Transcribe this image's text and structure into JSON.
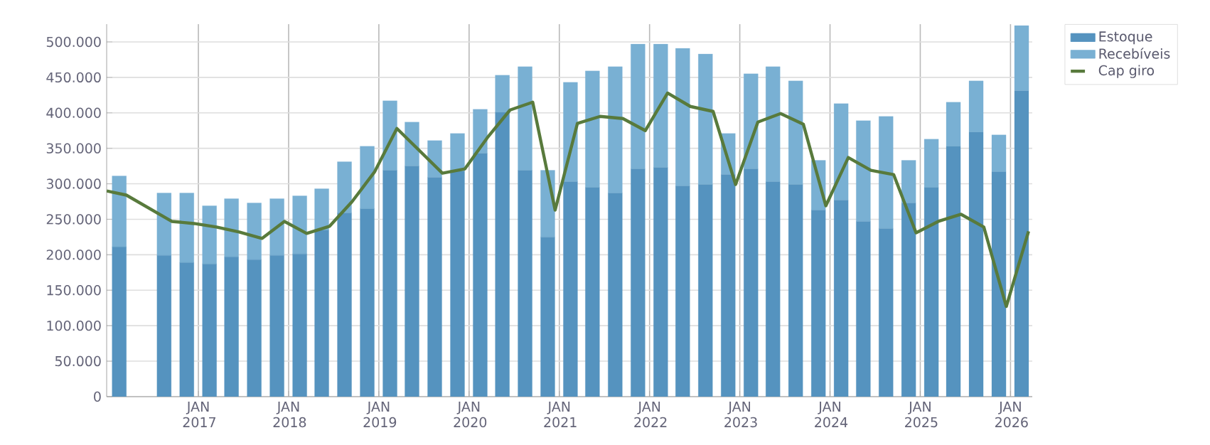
{
  "chart_data": {
    "type": "bar",
    "stacked": true,
    "x": [
      "2016-02-15",
      "2016-05-15",
      "2016-08-15",
      "2016-11-15",
      "2017-02-15",
      "2017-05-15",
      "2017-08-15",
      "2017-11-15",
      "2018-02-15",
      "2018-05-15",
      "2018-08-15",
      "2018-11-15",
      "2019-02-15",
      "2019-05-15",
      "2019-08-15",
      "2019-11-15",
      "2020-02-15",
      "2020-05-15",
      "2020-08-15",
      "2020-11-15",
      "2021-02-15",
      "2021-05-15",
      "2021-08-15",
      "2021-11-15",
      "2022-02-15",
      "2022-05-15",
      "2022-08-15",
      "2022-11-15",
      "2023-02-15",
      "2023-05-15",
      "2023-08-15",
      "2023-11-15",
      "2024-02-15",
      "2024-05-15",
      "2024-08-15",
      "2024-11-15",
      "2025-02-15",
      "2025-05-15",
      "2025-08-15",
      "2025-11-15",
      "2026-02-15"
    ],
    "series": [
      {
        "name": "Estoque",
        "color": "#5593bf",
        "values": [
          211000,
          null,
          199000,
          189000,
          187000,
          197000,
          193000,
          199000,
          201000,
          235000,
          259000,
          265000,
          319000,
          325000,
          309000,
          318000,
          343000,
          401000,
          319000,
          225000,
          303000,
          295000,
          287000,
          321000,
          323000,
          297000,
          299000,
          313000,
          321000,
          303000,
          299000,
          263000,
          277000,
          247000,
          237000,
          273000,
          295000,
          353000,
          373000,
          317000,
          431000
        ]
      },
      {
        "name": "Recebíveis",
        "color": "#79b0d3",
        "values": [
          100000,
          null,
          88000,
          98000,
          82000,
          82000,
          80000,
          80000,
          82000,
          58000,
          72000,
          88000,
          98000,
          62000,
          52000,
          53000,
          62000,
          52000,
          146000,
          94000,
          140000,
          164000,
          178000,
          176000,
          174000,
          194000,
          184000,
          58000,
          134000,
          162000,
          146000,
          70000,
          136000,
          142000,
          158000,
          60000,
          68000,
          62000,
          72000,
          52000,
          92000
        ]
      },
      {
        "name": "Cap giro",
        "type": "line",
        "color": "#587a3c",
        "x": [
          "2015-12-26",
          "2016-03-15",
          "2016-09-15",
          "2016-12-15",
          "2017-03-15",
          "2017-06-15",
          "2017-09-15",
          "2017-12-15",
          "2018-03-15",
          "2018-06-15",
          "2018-09-15",
          "2018-12-15",
          "2019-03-15",
          "2019-09-15",
          "2019-12-15",
          "2020-03-15",
          "2020-06-15",
          "2020-09-15",
          "2020-12-15",
          "2021-03-15",
          "2021-06-15",
          "2021-09-15",
          "2021-12-15",
          "2022-03-15",
          "2022-06-15",
          "2022-09-15",
          "2022-12-15",
          "2023-03-15",
          "2023-06-15",
          "2023-09-15",
          "2023-12-15",
          "2024-03-15",
          "2024-06-15",
          "2024-09-15",
          "2024-12-15",
          "2025-03-15",
          "2025-06-15",
          "2025-09-15",
          "2025-12-15",
          "2026-03-15"
        ],
        "values": [
          290000,
          284000,
          247000,
          244000,
          239000,
          232000,
          223000,
          247000,
          230000,
          240000,
          275000,
          317000,
          378000,
          315000,
          321000,
          365000,
          404000,
          415000,
          263000,
          385000,
          395000,
          392000,
          375000,
          428000,
          409000,
          402000,
          299000,
          387000,
          399000,
          384000,
          269000,
          337000,
          319000,
          313000,
          231000,
          247000,
          257000,
          239000,
          127000,
          233000
        ]
      }
    ],
    "xlim": [
      "2015-12-26",
      "2026-03-30"
    ],
    "ylim": [
      0,
      525000
    ],
    "xticks": [
      {
        "value": "2017-01-01",
        "label": "JAN 2017"
      },
      {
        "value": "2018-01-01",
        "label": "JAN 2018"
      },
      {
        "value": "2019-01-01",
        "label": "JAN 2019"
      },
      {
        "value": "2020-01-01",
        "label": "JAN 2020"
      },
      {
        "value": "2021-01-01",
        "label": "JAN 2021"
      },
      {
        "value": "2022-01-01",
        "label": "JAN 2022"
      },
      {
        "value": "2023-01-01",
        "label": "JAN 2023"
      },
      {
        "value": "2024-01-01",
        "label": "JAN 2024"
      },
      {
        "value": "2025-01-01",
        "label": "JAN 2025"
      },
      {
        "value": "2026-01-01",
        "label": "JAN 2026"
      }
    ],
    "yticks": [
      0,
      {
        "value": 50000,
        "label": "50.000"
      },
      {
        "value": 100000,
        "label": "100.000"
      },
      {
        "value": 150000,
        "label": "150.000"
      },
      {
        "value": 200000,
        "label": "200.000"
      },
      {
        "value": 250000,
        "label": "250.000"
      },
      {
        "value": 300000,
        "label": "300.000"
      },
      {
        "value": 350000,
        "label": "350.000"
      },
      {
        "value": 400000,
        "label": "400.000"
      },
      {
        "value": 450000,
        "label": "450.000"
      },
      {
        "value": 500000,
        "label": "500.000"
      }
    ],
    "grid": true,
    "legend": "top right"
  }
}
